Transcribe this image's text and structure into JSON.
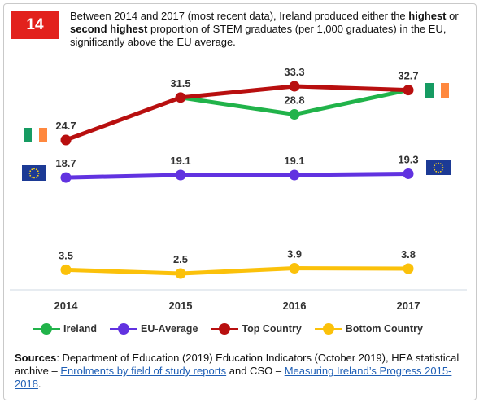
{
  "badge": "14",
  "headline": {
    "part1": "Between 2014 and 2017 (most recent data), Ireland produced either the ",
    "bold1": "highest",
    "part2": " or ",
    "bold2": "second highest",
    "part3": " proportion of STEM graduates (per 1,000 graduates) in the EU, significantly above the EU average."
  },
  "colors": {
    "ireland": "#21b34a",
    "eu": "#6132e0",
    "top": "#b80f0f",
    "bottom": "#fbc10a",
    "badge": "#e2211c",
    "link": "#1f5fb5"
  },
  "chart_data": {
    "type": "line",
    "categories": [
      "2014",
      "2015",
      "2016",
      "2017"
    ],
    "series": [
      {
        "name": "Ireland",
        "values": [
          null,
          31.5,
          28.8,
          32.7
        ],
        "color": "#21b34a"
      },
      {
        "name": "EU-Average",
        "values": [
          18.7,
          19.1,
          19.1,
          19.3
        ],
        "color": "#6132e0"
      },
      {
        "name": "Top Country",
        "values": [
          24.7,
          31.5,
          33.3,
          32.7
        ],
        "color": "#b80f0f"
      },
      {
        "name": "Bottom Country",
        "values": [
          3.5,
          2.5,
          3.9,
          3.8
        ],
        "color": "#fbc10a"
      }
    ],
    "data_labels": {
      "Top Country": [
        "24.7",
        "31.5",
        "33.3",
        "32.7"
      ],
      "Ireland": [
        "",
        "",
        "28.8",
        ""
      ],
      "EU-Average": [
        "18.7",
        "19.1",
        "19.1",
        "19.3"
      ],
      "Bottom Country": [
        "3.5",
        "2.5",
        "3.9",
        "3.8"
      ]
    },
    "title": "",
    "xlabel": "",
    "ylabel": "",
    "grid": false,
    "legend_position": "bottom"
  },
  "legend": [
    "Ireland",
    "EU-Average",
    "Top Country",
    "Bottom Country"
  ],
  "flags": {
    "left": [
      "irish-flag",
      "eu-flag"
    ],
    "right": [
      "irish-flag",
      "eu-flag"
    ]
  },
  "sources": {
    "label": "Sources",
    "text1": ": Department of Education (2019) Education Indicators (October 2019), HEA statistical archive – ",
    "link1": "Enrolments by field of study reports",
    "text2": " and CSO – ",
    "link2": "Measuring Ireland’s Progress 2015-2018",
    "text3": "."
  }
}
